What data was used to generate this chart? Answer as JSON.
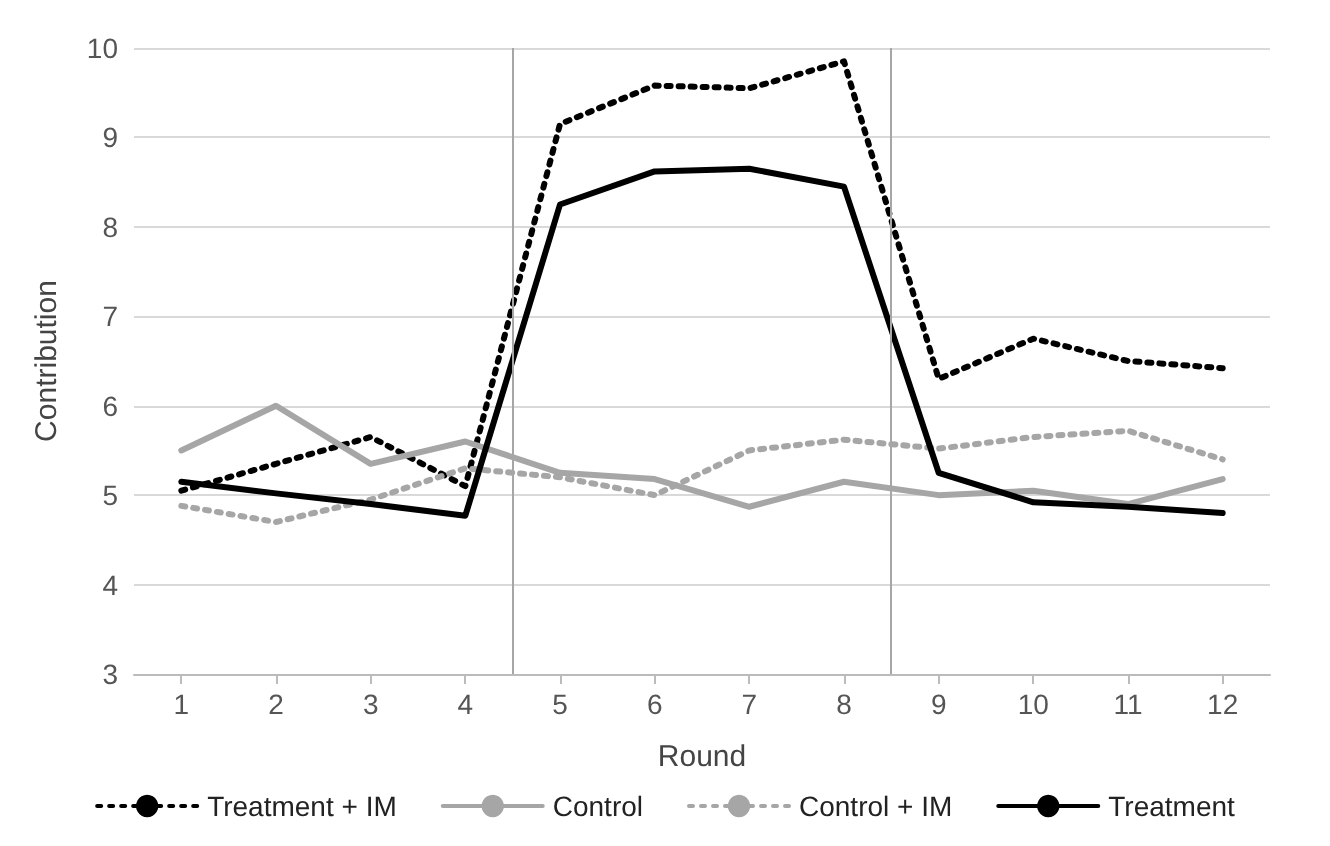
{
  "chart_data": {
    "type": "line",
    "xlabel": "Round",
    "ylabel": "Contribution",
    "x": [
      1,
      2,
      3,
      4,
      5,
      6,
      7,
      8,
      9,
      10,
      11,
      12
    ],
    "xlim": [
      0.5,
      12.5
    ],
    "xticks": [
      1,
      2,
      3,
      4,
      5,
      6,
      7,
      8,
      9,
      10,
      11,
      12
    ],
    "ylim": [
      3,
      10
    ],
    "yticks": [
      3,
      4,
      5,
      6,
      7,
      8,
      9,
      10
    ],
    "grid": "y",
    "legend": "bottom",
    "marker": "none",
    "ref_lines": [
      {
        "axis": "x",
        "value": 4.5,
        "color": "#a6a6a6"
      },
      {
        "axis": "x",
        "value": 8.5,
        "color": "#a6a6a6"
      }
    ],
    "series": [
      {
        "name": "Treatment + IM",
        "color": "#000000",
        "line_style": "dotted",
        "values": [
          5.05,
          5.35,
          5.65,
          5.1,
          9.15,
          9.58,
          9.55,
          9.85,
          6.3,
          6.75,
          6.5,
          6.42
        ]
      },
      {
        "name": "Control",
        "color": "#a6a6a6",
        "line_style": "solid",
        "values": [
          5.5,
          6.0,
          5.35,
          5.6,
          5.25,
          5.18,
          4.87,
          5.15,
          5.0,
          5.05,
          4.9,
          5.18
        ]
      },
      {
        "name": "Control + IM",
        "color": "#a6a6a6",
        "line_style": "dotted",
        "values": [
          4.88,
          4.7,
          4.95,
          5.3,
          5.2,
          5.0,
          5.5,
          5.62,
          5.52,
          5.65,
          5.72,
          5.4
        ]
      },
      {
        "name": "Treatment",
        "color": "#000000",
        "line_style": "solid",
        "values": [
          5.15,
          5.02,
          4.9,
          4.77,
          8.25,
          8.62,
          8.65,
          8.45,
          5.25,
          4.92,
          4.87,
          4.8
        ]
      }
    ]
  }
}
